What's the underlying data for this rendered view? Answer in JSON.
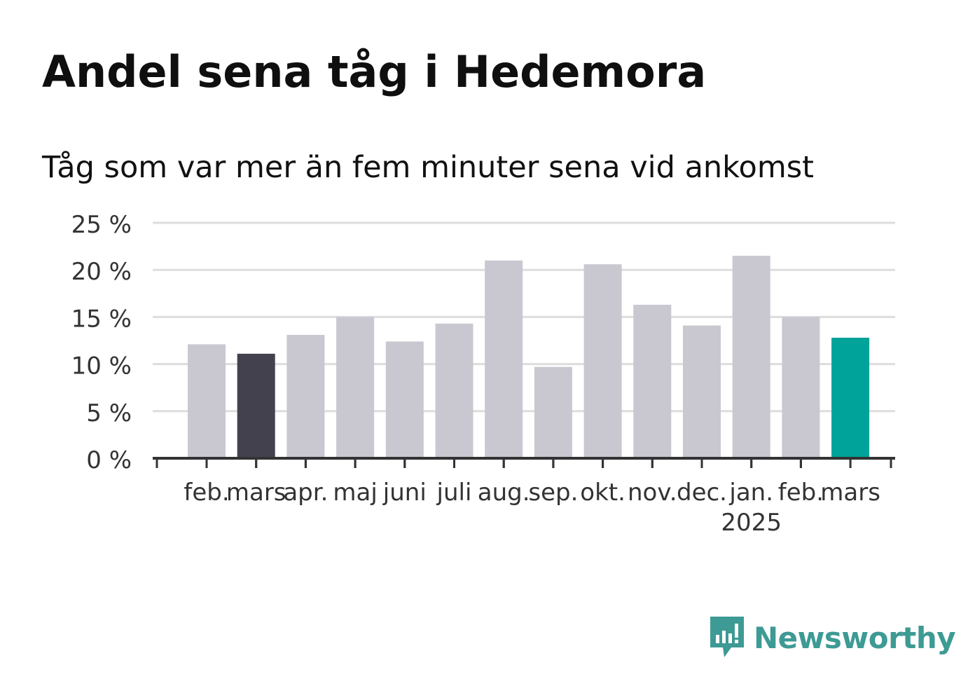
{
  "title": "Andel sena tåg i Hedemora",
  "subtitle": "Tåg som var mer än fem minuter sena vid ankomst",
  "brand": {
    "name": "Newsworthy",
    "icon": "newsworthy-logo-icon",
    "color": "#3d9a94"
  },
  "chart_data": {
    "type": "bar",
    "categories": [
      "feb.",
      "mars",
      "apr.",
      "maj",
      "juni",
      "juli",
      "aug.",
      "sep.",
      "okt.",
      "nov.",
      "dec.",
      "jan.",
      "feb.",
      "mars"
    ],
    "year_labels": [
      {
        "index": 11,
        "label": "2025"
      }
    ],
    "values": [
      12.1,
      11.1,
      13.1,
      15.0,
      12.4,
      14.3,
      21.0,
      9.7,
      20.6,
      16.3,
      14.1,
      21.5,
      15.0,
      12.8
    ],
    "bar_colors": [
      "#c9c8d1",
      "#43414e",
      "#c9c8d1",
      "#c9c8d1",
      "#c9c8d1",
      "#c9c8d1",
      "#c9c8d1",
      "#c9c8d1",
      "#c9c8d1",
      "#c9c8d1",
      "#c9c8d1",
      "#c9c8d1",
      "#c9c8d1",
      "#00a39a"
    ],
    "ylim": [
      0,
      25
    ],
    "yticks": [
      0,
      5,
      10,
      15,
      20,
      25
    ],
    "ytick_labels": [
      "0 %",
      "5 %",
      "10 %",
      "15 %",
      "20 %",
      "25 %"
    ],
    "grid": true,
    "xlabel": "",
    "ylabel": ""
  }
}
